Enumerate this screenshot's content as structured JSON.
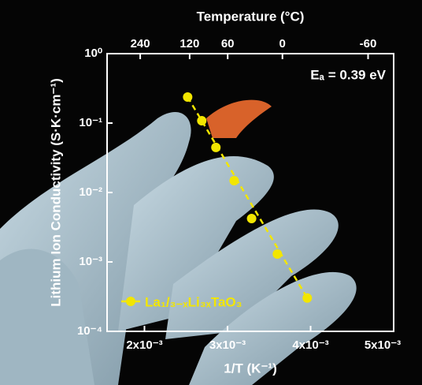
{
  "chart_data": {
    "type": "scatter",
    "x_label": "1/T (K⁻¹)",
    "y_label": "Lithium Ion Conductivity (S·K·cm⁻¹)",
    "x2_label": "Temperature (°C)",
    "annotation": "Eₐ = 0.39 eV",
    "log_y": true,
    "color": "#f2e600",
    "legend": "bottom-left",
    "series": [
      {
        "name": "La₁/₃₋ₓLi₃ₓTaO₃",
        "color": "#f2e600",
        "x": [
          0.00252,
          0.00269,
          0.00286,
          0.00308,
          0.00329,
          0.0036,
          0.00396
        ],
        "values": [
          0.237,
          0.108,
          0.0446,
          0.0148,
          0.00422,
          0.0013,
          0.000302
        ]
      }
    ],
    "xlim": [
      0.00155,
      0.005
    ],
    "xticks": [
      {
        "value": 0.002,
        "label": "2x10⁻³"
      },
      {
        "value": 0.003,
        "label": "3x10⁻³"
      },
      {
        "value": 0.004,
        "label": "4x10⁻³"
      },
      {
        "value": 0.005,
        "label": "5x10⁻³"
      }
    ],
    "x2ticks": [
      {
        "value": 0.001949,
        "label": "240"
      },
      {
        "value": 0.002544,
        "label": "120"
      },
      {
        "value": 0.003002,
        "label": "60"
      },
      {
        "value": 0.003661,
        "label": "0"
      },
      {
        "value": 0.004692,
        "label": "-60"
      }
    ],
    "ylim": [
      0.0001,
      1
    ],
    "yticks": [
      {
        "value": 1,
        "label": "10⁰"
      },
      {
        "value": 0.1,
        "label": "10⁻¹"
      },
      {
        "value": 0.01,
        "label": "10⁻²"
      },
      {
        "value": 0.001,
        "label": "10⁻³"
      },
      {
        "value": 0.0001,
        "label": "10⁻⁴"
      }
    ]
  }
}
